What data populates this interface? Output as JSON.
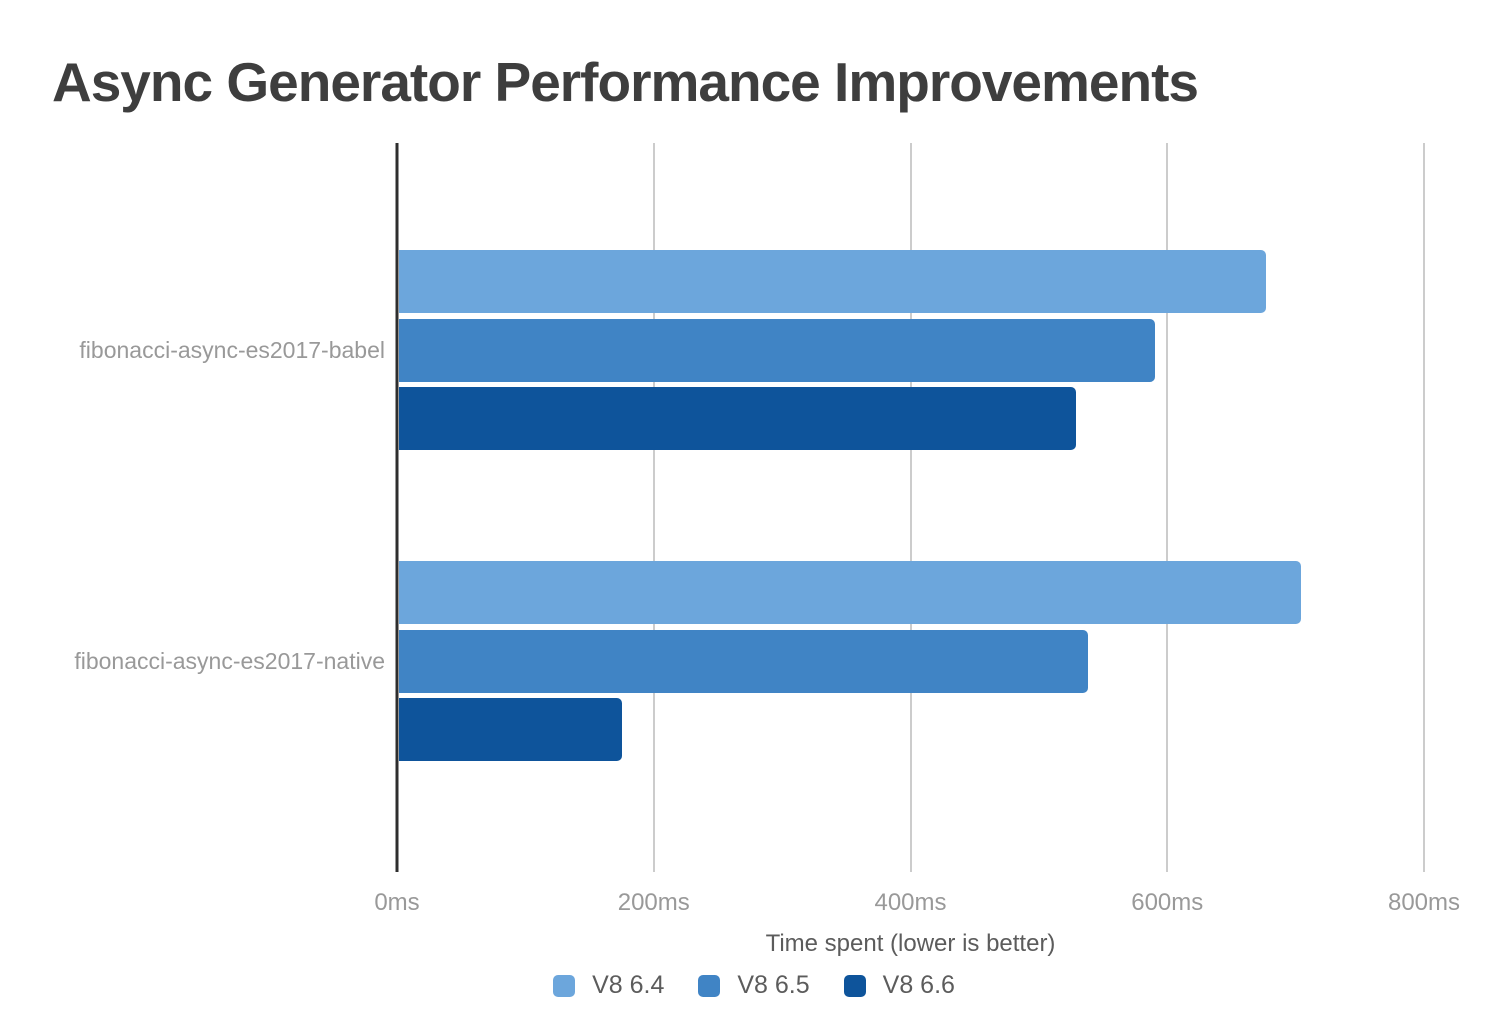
{
  "page": {
    "background": "#ffffff"
  },
  "chart_data": {
    "type": "bar",
    "orientation": "horizontal",
    "title": "Async Generator Performance Improvements",
    "xlabel": "Time spent (lower is better)",
    "categories": [
      "fibonacci-async-es2017-babel",
      "fibonacci-async-es2017-native"
    ],
    "series": [
      {
        "name": "V8 6.4",
        "color": "#6ca6dc",
        "values": [
          675,
          703
        ]
      },
      {
        "name": "V8 6.5",
        "color": "#4084c5",
        "values": [
          589,
          537
        ]
      },
      {
        "name": "V8 6.6",
        "color": "#0e549b",
        "values": [
          527,
          174
        ]
      }
    ],
    "values_unit": "ms",
    "xlim": [
      0,
      800
    ],
    "x_ticks": [
      {
        "value": 0,
        "label": "0ms"
      },
      {
        "value": 200,
        "label": "200ms"
      },
      {
        "value": 400,
        "label": "400ms"
      },
      {
        "value": 600,
        "label": "600ms"
      },
      {
        "value": 800,
        "label": "800ms"
      }
    ],
    "grid": true,
    "legend_position": "bottom"
  },
  "colors": {
    "title": "#3e3e3e",
    "axis_line": "#2e2e2e",
    "gridline": "#cccccc",
    "tick_label": "#999999",
    "category_label": "#999999",
    "axis_title": "#5c5c5c",
    "legend_label": "#5c5c5c"
  }
}
